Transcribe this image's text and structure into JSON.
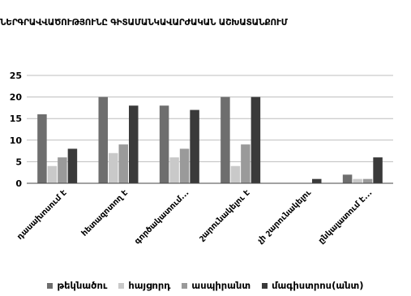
{
  "chart_data": {
    "type": "bar",
    "title": "ՆԵՐԳՐԱՎՎԱԾՈՒԹՅՈՒՆԸ ԳԻՏԱՄԱՆԿԱՎԱՐԺԱԿԱՆ ԱՇԽԱՏԱՆՔՈՒՄ",
    "categories": [
      "դասախոսում է",
      "հետազոտող է",
      "գործակատում...",
      "շարունակելու է",
      "չի շարունակելու",
      "ընկալատում է..."
    ],
    "series": [
      {
        "name": "թեկնածու",
        "values": [
          16,
          20,
          18,
          20,
          0,
          2
        ],
        "color": "#6e6e6e"
      },
      {
        "name": "հայցորդ",
        "values": [
          4,
          7,
          6,
          4,
          0,
          1
        ],
        "color": "#c9c9c9"
      },
      {
        "name": "ասպիրանտ",
        "values": [
          6,
          9,
          8,
          9,
          0,
          1
        ],
        "color": "#9a9a9a"
      },
      {
        "name": "մագիստրոս(անտ)",
        "values": [
          8,
          18,
          17,
          20,
          1,
          6
        ],
        "color": "#3a3a3a"
      }
    ],
    "ylim": [
      0,
      25
    ],
    "yticks": [
      0,
      5,
      10,
      15,
      20,
      25
    ],
    "grid": true,
    "legend": "bottom"
  }
}
